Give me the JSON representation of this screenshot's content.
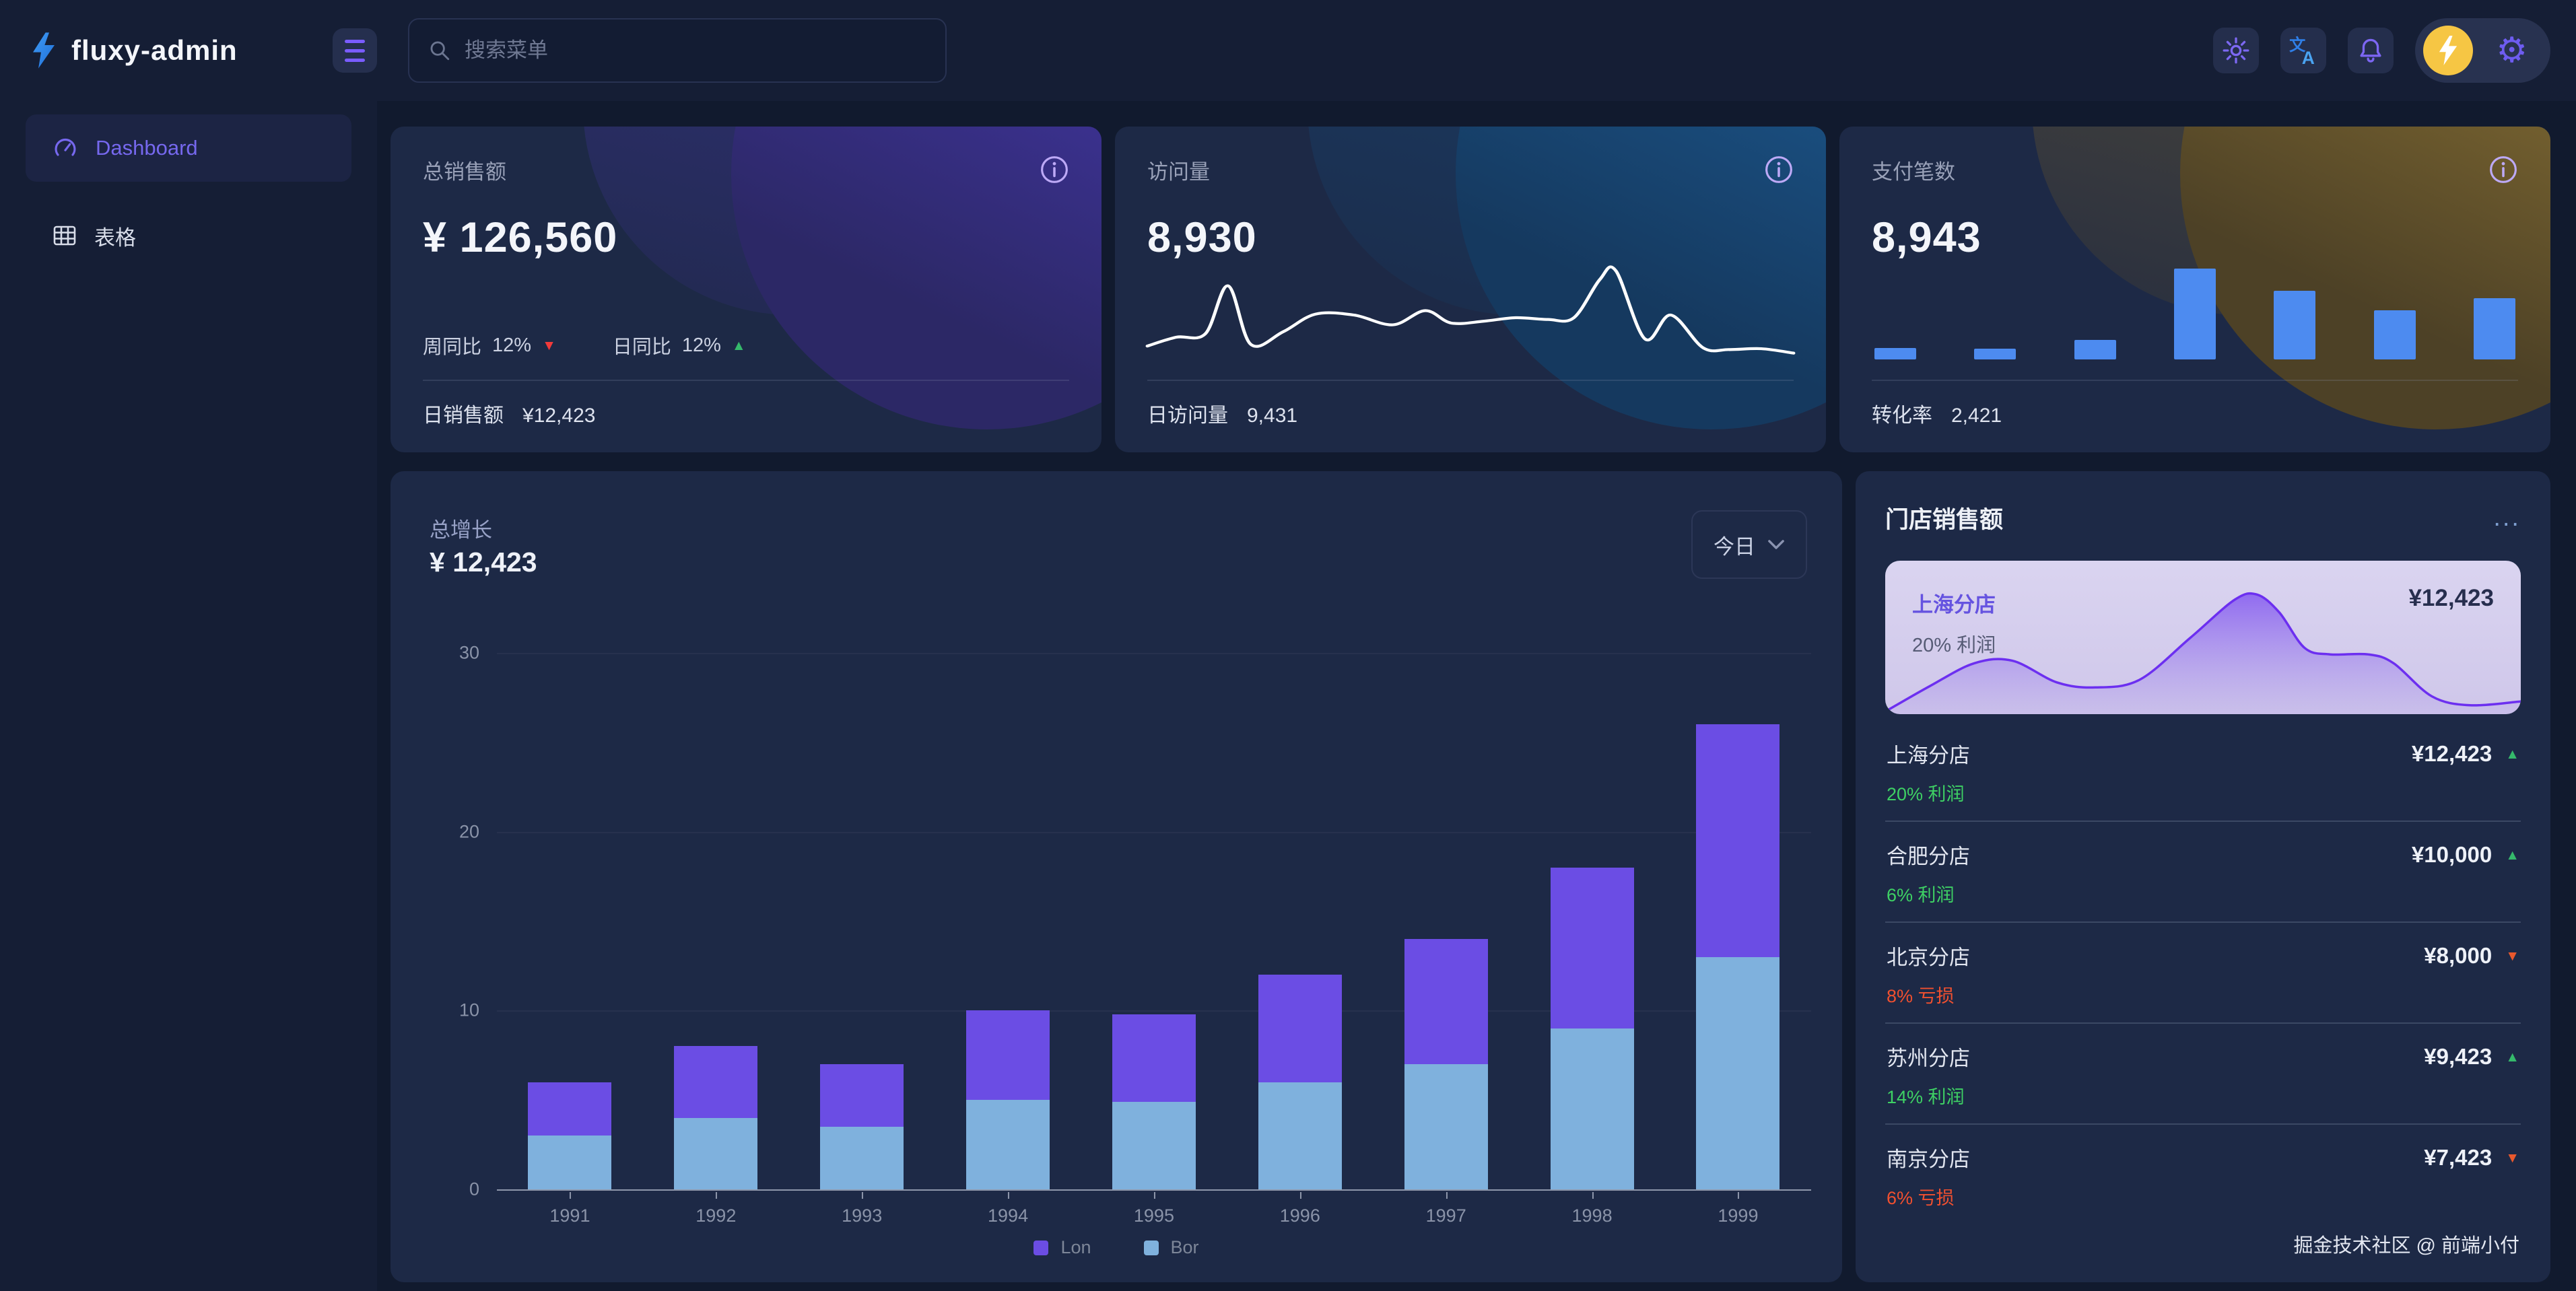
{
  "brand": {
    "name": "fluxy-admin"
  },
  "header": {
    "search_placeholder": "搜索菜单",
    "action_icons": [
      "sun-icon",
      "translate-icon",
      "bell-icon",
      "gear-icon"
    ]
  },
  "sidebar": {
    "items": [
      {
        "label": "Dashboard",
        "icon": "gauge-icon",
        "active": true
      },
      {
        "label": "表格",
        "icon": "table-icon",
        "active": false
      }
    ]
  },
  "stat_cards": [
    {
      "label": "总销售额",
      "value": "¥ 126,560",
      "trends": [
        {
          "label": "周同比",
          "value": "12%",
          "direction": "down"
        },
        {
          "label": "日同比",
          "value": "12%",
          "direction": "up"
        }
      ],
      "footer_label": "日销售额",
      "footer_value": "¥12,423"
    },
    {
      "label": "访问量",
      "value": "8,930",
      "footer_label": "日访问量",
      "footer_value": "9,431"
    },
    {
      "label": "支付笔数",
      "value": "8,943",
      "footer_label": "转化率",
      "footer_value": "2,421"
    }
  ],
  "growth": {
    "title": "总增长",
    "value": "¥ 12,423",
    "range_label": "今日"
  },
  "chart_data": [
    {
      "type": "bar",
      "stacked": true,
      "title": "总增长",
      "categories": [
        "1991",
        "1992",
        "1993",
        "1994",
        "1995",
        "1996",
        "1997",
        "1998",
        "1999"
      ],
      "series": [
        {
          "name": "Lon",
          "color": "#6b4de4",
          "values": [
            3,
            4,
            3.5,
            5,
            4.9,
            6,
            7,
            9,
            13
          ]
        },
        {
          "name": "Bor",
          "color": "#7fb1dd",
          "values": [
            3,
            4,
            3.5,
            5,
            4.9,
            6,
            7,
            9,
            13
          ]
        }
      ],
      "ylim": [
        0,
        30
      ],
      "yticks": [
        0,
        10,
        20,
        30
      ],
      "grid": true,
      "legend_position": "bottom-center"
    },
    {
      "type": "line",
      "name": "visits-sparkline",
      "color": "#ffffff",
      "x": [
        0,
        0.045,
        0.09,
        0.125,
        0.16,
        0.21,
        0.26,
        0.32,
        0.38,
        0.43,
        0.47,
        0.52,
        0.57,
        0.62,
        0.66,
        0.7,
        0.725,
        0.77,
        0.81,
        0.86,
        0.9,
        0.95,
        1
      ],
      "y": [
        0.1,
        0.2,
        0.24,
        0.78,
        0.12,
        0.26,
        0.46,
        0.45,
        0.34,
        0.5,
        0.36,
        0.38,
        0.42,
        0.4,
        0.42,
        0.85,
        0.95,
        0.18,
        0.45,
        0.08,
        0.06,
        0.07,
        0.02
      ]
    },
    {
      "type": "bar",
      "name": "payments-mini-bars",
      "color": "#4d8bf0",
      "values": [
        12,
        11,
        20,
        93,
        70,
        50,
        63
      ]
    },
    {
      "type": "area",
      "name": "store-sales-sparkline",
      "stroke": "#6c2ff0",
      "x": [
        0,
        0.07,
        0.14,
        0.2,
        0.27,
        0.33,
        0.4,
        0.48,
        0.55,
        0.585,
        0.62,
        0.66,
        0.7,
        0.76,
        0.8,
        0.86,
        0.92,
        1
      ],
      "y": [
        0.02,
        0.22,
        0.4,
        0.42,
        0.25,
        0.21,
        0.27,
        0.6,
        0.9,
        0.94,
        0.8,
        0.52,
        0.47,
        0.47,
        0.4,
        0.14,
        0.07,
        0.1
      ]
    }
  ],
  "store_panel": {
    "title": "门店销售额",
    "menu_label": "...",
    "highlight": {
      "name": "上海分店",
      "value": "¥12,423",
      "profit": "20% 利润"
    },
    "rows": [
      {
        "name": "上海分店",
        "profit": "20% 利润",
        "trend": "up",
        "value": "¥12,423"
      },
      {
        "name": "合肥分店",
        "profit": "6% 利润",
        "trend": "up",
        "value": "¥10,000"
      },
      {
        "name": "北京分店",
        "profit": "8% 亏损",
        "trend": "down",
        "value": "¥8,000"
      },
      {
        "name": "苏州分店",
        "profit": "14% 利润",
        "trend": "up",
        "value": "¥9,423"
      },
      {
        "name": "南京分店",
        "profit": "6% 亏损",
        "trend": "down",
        "value": "¥7,423"
      }
    ],
    "footer": "掘金技术社区 @ 前端小付"
  },
  "colors": {
    "accent_purple": "#6b4de4",
    "bar_blue": "#7fb1dd",
    "mini_bar_blue": "#4d8bf0",
    "up_green": "#3ed164",
    "down_red": "#f23a3a",
    "down_orange": "#e8582d",
    "avatar_yellow": "#f6c644"
  }
}
